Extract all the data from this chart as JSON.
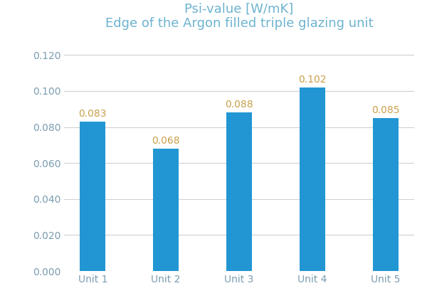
{
  "categories": [
    "Unit 1",
    "Unit 2",
    "Unit 3",
    "Unit 4",
    "Unit 5"
  ],
  "values": [
    0.083,
    0.068,
    0.088,
    0.102,
    0.085
  ],
  "bar_color": "#2196d3",
  "title_line1": "Psi-value [W/mK]",
  "title_line2": "Edge of the Argon filled triple glazing unit",
  "title_color": "#6db3d0",
  "ylim": [
    0.0,
    0.13
  ],
  "yticks": [
    0.0,
    0.02,
    0.04,
    0.06,
    0.08,
    0.1,
    0.12
  ],
  "bar_width": 0.35,
  "label_fontsize": 10,
  "title_fontsize": 13,
  "tick_fontsize": 10,
  "value_label_color": "#c8a04a",
  "tick_label_color": "#7a9cb0",
  "background_color": "#ffffff",
  "grid_color": "#d0d0d0"
}
